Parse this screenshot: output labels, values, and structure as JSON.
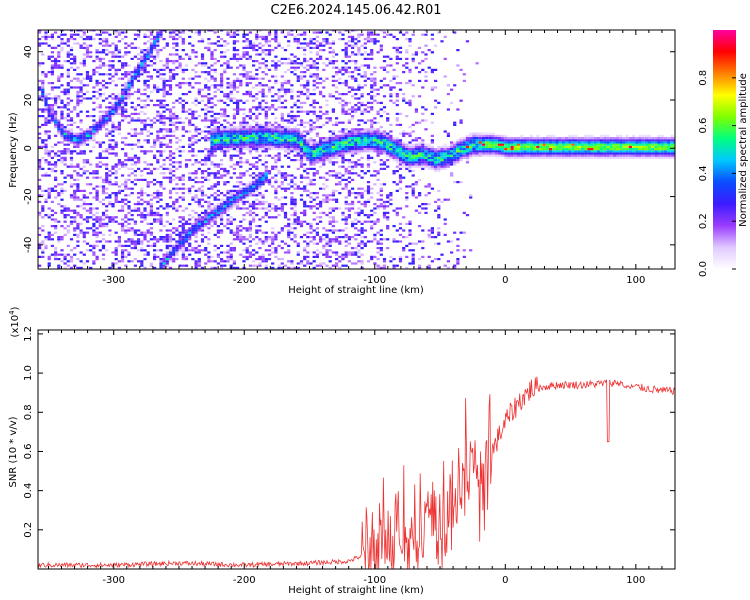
{
  "title": "C2E6.2024.145.06.42.R01",
  "colors": {
    "snr_line": "#ee3333",
    "axis": "#000000",
    "colormap": [
      "#ffffff",
      "#e0c8ff",
      "#9a3cff",
      "#3b1bff",
      "#0a4dff",
      "#00c8ff",
      "#00ff80",
      "#7fff00",
      "#ffff00",
      "#ff8000",
      "#ff0000",
      "#ff00a0"
    ]
  },
  "chart_data": [
    {
      "type": "heatmap",
      "title": "C2E6.2024.145.06.42.R01",
      "xlabel": "Height of straight line (km)",
      "ylabel": "Frequency (Hz)",
      "xlim": [
        -358,
        130
      ],
      "ylim": [
        -50,
        49
      ],
      "x_ticks": [
        -300,
        -200,
        -100,
        0,
        100
      ],
      "x_tick_labels": [
        "-300",
        "-200",
        "-100",
        "0",
        "100"
      ],
      "y_ticks": [
        -40,
        -20,
        0,
        20,
        40
      ],
      "y_tick_labels": [
        "-40",
        "-20",
        "0",
        "20",
        "40"
      ],
      "colorbar": {
        "label": "Normalized spectral amplitude",
        "range": [
          0,
          1
        ],
        "ticks": [
          0.0,
          0.2,
          0.4,
          0.6,
          0.8
        ],
        "tick_labels": [
          "0.0",
          "0.2",
          "0.4",
          "0.6",
          "0.8"
        ]
      },
      "features": [
        {
          "name": "main carrier",
          "points": [
            [
              -228,
              3
            ],
            [
              -200,
              4
            ],
            [
              -180,
              4
            ],
            [
              -160,
              3
            ],
            [
              -150,
              -3
            ],
            [
              -140,
              -1
            ],
            [
              -120,
              2
            ],
            [
              -105,
              3
            ],
            [
              -95,
              2
            ],
            [
              -85,
              -1
            ],
            [
              -75,
              -4
            ],
            [
              -65,
              -3
            ],
            [
              -55,
              -5
            ],
            [
              -45,
              -4
            ],
            [
              -35,
              -1
            ],
            [
              -25,
              1
            ],
            [
              -10,
              1
            ],
            [
              0,
              0
            ],
            [
              20,
              0
            ],
            [
              50,
              0
            ],
            [
              90,
              0
            ],
            [
              130,
              0
            ]
          ]
        },
        {
          "name": "upper curve",
          "points": [
            [
              -357,
              25
            ],
            [
              -350,
              14
            ],
            [
              -340,
              6
            ],
            [
              -330,
              3
            ],
            [
              -320,
              5
            ],
            [
              -305,
              13
            ],
            [
              -295,
              20
            ],
            [
              -285,
              30
            ],
            [
              -275,
              38
            ],
            [
              -265,
              48
            ]
          ]
        },
        {
          "name": "lower branch",
          "points": [
            [
              -266,
              -50
            ],
            [
              -250,
              -40
            ],
            [
              -240,
              -34
            ],
            [
              -225,
              -28
            ],
            [
              -210,
              -22
            ],
            [
              -195,
              -17
            ],
            [
              -183,
              -11
            ]
          ]
        }
      ]
    },
    {
      "type": "line",
      "xlabel": "Height of straight line (km)",
      "ylabel": "SNR (10 * v/v)",
      "y_multiplier": "(x10",
      "y_multiplier_exp": "4",
      "y_multiplier_close": ")",
      "xlim": [
        -358,
        130
      ],
      "ylim": [
        0,
        1.22
      ],
      "x_ticks": [
        -300,
        -200,
        -100,
        0,
        100
      ],
      "x_tick_labels": [
        "-300",
        "-200",
        "-100",
        "0",
        "100"
      ],
      "y_ticks": [
        0.2,
        0.4,
        0.6,
        0.8,
        1.0,
        1.2
      ],
      "y_tick_labels": [
        "0.2",
        "0.4",
        "0.6",
        "0.8",
        "1.0",
        "1.2"
      ],
      "series": [
        {
          "x": [
            -358,
            -300,
            -250,
            -200,
            -150,
            -120,
            -105,
            -90,
            -80,
            -70,
            -60,
            -50,
            -40,
            -30,
            -20,
            -10,
            0,
            10,
            20,
            30,
            40,
            60,
            80,
            90,
            95,
            100,
            110,
            120,
            130
          ],
          "y": [
            0.02,
            0.02,
            0.03,
            0.02,
            0.03,
            0.04,
            0.08,
            0.12,
            0.17,
            0.15,
            0.22,
            0.25,
            0.38,
            0.55,
            0.55,
            0.6,
            0.75,
            0.85,
            0.92,
            0.93,
            0.94,
            0.94,
            0.95,
            0.95,
            0.93,
            0.93,
            0.92,
            0.91,
            0.91
          ]
        }
      ]
    }
  ]
}
